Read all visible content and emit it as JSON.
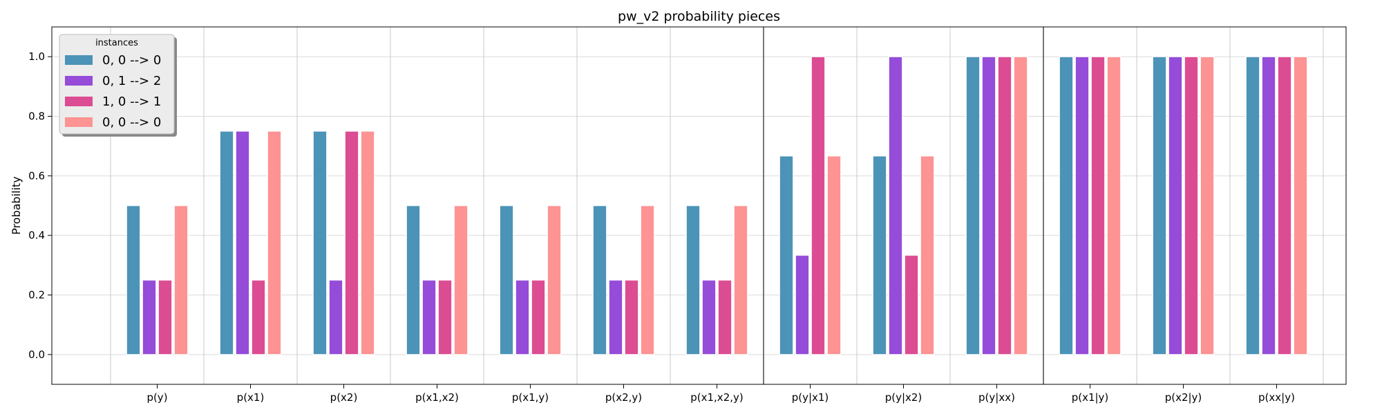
{
  "chart_data": {
    "type": "bar",
    "title": "pw_v2 probability pieces",
    "xlabel": "",
    "ylabel": "Probability",
    "ylim": [
      -0.1,
      1.1
    ],
    "yticks": [
      0.0,
      0.2,
      0.4,
      0.6,
      0.8,
      1.0
    ],
    "ytick_labels": [
      "0.0",
      "0.2",
      "0.4",
      "0.6",
      "0.8",
      "1.0"
    ],
    "grid": true,
    "categories": [
      "p(y)",
      "p(x1)",
      "p(x2)",
      "p(x1,x2)",
      "p(x1,y)",
      "p(x2,y)",
      "p(x1,x2,y)",
      "p(y|x1)",
      "p(y|x2)",
      "p(y|xx)",
      "p(x1|y)",
      "p(x2|y)",
      "p(xx|y)"
    ],
    "group_separators_after": [
      "p(x1,x2,y)",
      "p(y|xx)"
    ],
    "legend": {
      "title": "instances",
      "placement": "top-left"
    },
    "series": [
      {
        "name": "0, 0 --> 0",
        "color": "#4c93b8",
        "values": [
          0.5,
          0.75,
          0.75,
          0.5,
          0.5,
          0.5,
          0.5,
          0.6667,
          0.6667,
          1.0,
          1.0,
          1.0,
          1.0
        ]
      },
      {
        "name": "0, 1 --> 2",
        "color": "#954cd9",
        "values": [
          0.25,
          0.75,
          0.25,
          0.25,
          0.25,
          0.25,
          0.25,
          0.3333,
          1.0,
          1.0,
          1.0,
          1.0,
          1.0
        ]
      },
      {
        "name": "1, 0 --> 1",
        "color": "#dc4c92",
        "values": [
          0.25,
          0.25,
          0.75,
          0.25,
          0.25,
          0.25,
          0.25,
          1.0,
          0.3333,
          1.0,
          1.0,
          1.0,
          1.0
        ]
      },
      {
        "name": "0, 0 --> 0",
        "color": "#fd9393",
        "values": [
          0.5,
          0.75,
          0.75,
          0.5,
          0.5,
          0.5,
          0.5,
          0.6667,
          0.6667,
          1.0,
          1.0,
          1.0,
          1.0
        ]
      }
    ]
  }
}
